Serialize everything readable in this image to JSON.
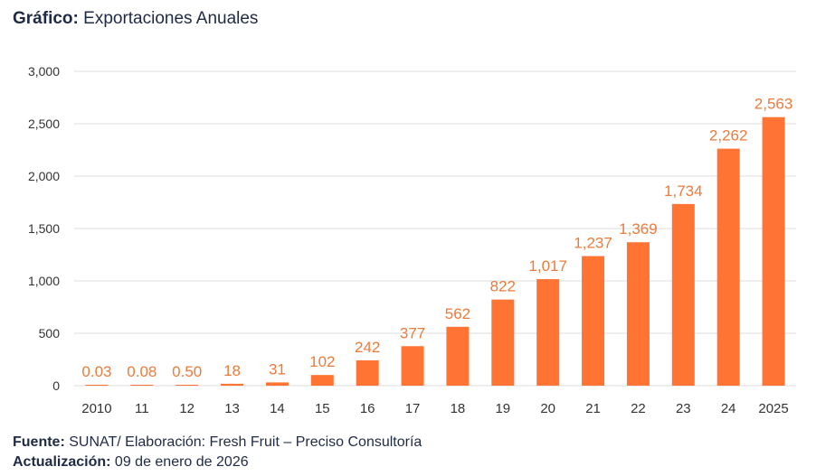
{
  "header": {
    "label": "Gráfico:",
    "text": "Exportaciones Anuales"
  },
  "chart_data": {
    "type": "bar",
    "title": "",
    "xlabel": "",
    "ylabel": "",
    "categories": [
      "2010",
      "11",
      "12",
      "13",
      "14",
      "15",
      "16",
      "17",
      "18",
      "19",
      "20",
      "21",
      "22",
      "23",
      "24",
      "2025"
    ],
    "values": [
      0.03,
      0.08,
      0.5,
      18,
      31,
      102,
      242,
      377,
      562,
      822,
      1017,
      1237,
      1369,
      1734,
      2262,
      2563
    ],
    "data_labels": [
      "0.03",
      "0.08",
      "0.50",
      "18",
      "31",
      "102",
      "242",
      "377",
      "562",
      "822",
      "1,017",
      "1,237",
      "1,369",
      "1,734",
      "2,262",
      "2,563"
    ],
    "ylim": [
      0,
      3000
    ],
    "yticks": [
      0,
      500,
      1000,
      1500,
      2000,
      2500,
      3000
    ],
    "ytick_labels": [
      "0",
      "500",
      "1,000",
      "1,500",
      "2,000",
      "2,500",
      "3,000"
    ],
    "grid": true,
    "legend": "none",
    "colors": {
      "bar": "#ff7433",
      "label": "#ee7a3a",
      "grid": "#dcdcdc",
      "tick": "#333333"
    }
  },
  "footer": {
    "source_label": "Fuente:",
    "source_text": "SUNAT/ Elaboración: Fresh Fruit – Preciso Consultoría",
    "update_label": "Actualización:",
    "update_text": "09 de enero de 2026"
  }
}
